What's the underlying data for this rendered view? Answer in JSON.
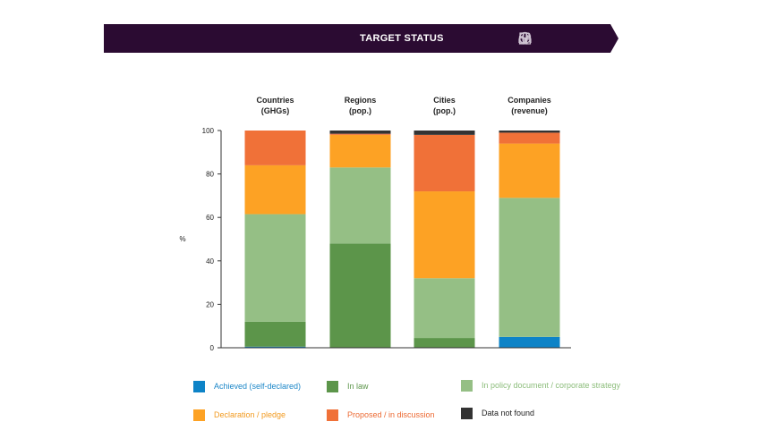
{
  "header": {
    "title": "TARGET STATUS",
    "icons": [
      "country-icon",
      "city-icon",
      "globe-icon",
      "company-icon"
    ]
  },
  "chart_data": {
    "type": "bar",
    "stacked": true,
    "ylabel": "%",
    "ylim": [
      0,
      100
    ],
    "yticks": [
      0,
      20,
      40,
      60,
      80,
      100
    ],
    "grid": false,
    "categories": [
      "Countries\n(GHGs)",
      "Regions\n(pop.)",
      "Cities\n(pop.)",
      "Companies\n(revenue)"
    ],
    "series": [
      {
        "name": "Achieved (self-declared)",
        "color": "#0d83c7",
        "values": [
          0.5,
          0,
          0,
          5
        ]
      },
      {
        "name": "In law",
        "color": "#5c954a",
        "values": [
          11.5,
          48,
          4.5,
          0
        ]
      },
      {
        "name": "In policy document / corporate strategy",
        "color": "#95bf85",
        "values": [
          49.5,
          35,
          27.5,
          64
        ]
      },
      {
        "name": "Declaration / pledge",
        "color": "#fda224",
        "values": [
          22.5,
          15,
          40,
          25
        ]
      },
      {
        "name": "Proposed / in discussion",
        "color": "#f07138",
        "values": [
          16,
          0.5,
          26,
          5
        ]
      },
      {
        "name": "Data not found",
        "color": "#333333",
        "values": [
          0,
          1.5,
          2,
          1
        ]
      }
    ],
    "legend_position": "bottom"
  }
}
